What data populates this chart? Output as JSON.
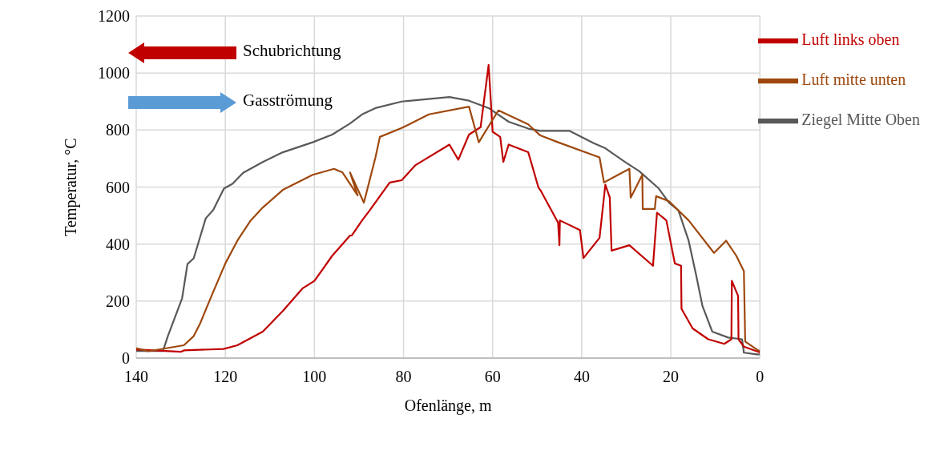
{
  "chart_data": {
    "type": "line",
    "xlabel": "Ofenlänge, m",
    "ylabel": "Temperatur, °C",
    "annotations": [
      "Schubrichtung",
      "Gasströmung"
    ],
    "xlim": [
      140,
      0
    ],
    "xticks": [
      140,
      120,
      100,
      80,
      60,
      40,
      20,
      0
    ],
    "ylim": [
      0,
      1200
    ],
    "yticks": [
      0,
      200,
      400,
      600,
      800,
      1000,
      1200
    ],
    "grid": true,
    "legend": "top right",
    "line_style": "solid",
    "marker": "none",
    "series": [
      {
        "name": "Ziegel Mitte Oben",
        "color": "#595959",
        "x": [
          140,
          134,
          132.9,
          129.7,
          128.5,
          127.1,
          124.4,
          122.7,
          120.3,
          118.4,
          116,
          111.6,
          107.1,
          100.4,
          96,
          92,
          89.3,
          86.3,
          80.4,
          69.7,
          65.3,
          60.9,
          56.4,
          52,
          49.3,
          45.3,
          42.7,
          37.3,
          34.7,
          30.3,
          27.1,
          22.7,
          20.4,
          18.3,
          16,
          14.3,
          12.9,
          10.7,
          7.1,
          4,
          3.6,
          0.7,
          0
        ],
        "values": [
          25,
          25,
          77,
          210,
          330,
          350,
          490,
          520,
          595,
          611,
          650,
          688,
          722,
          757,
          784,
          823,
          855,
          877,
          900,
          916,
          903,
          877,
          829,
          805,
          797,
          797,
          797,
          754,
          736,
          688,
          656,
          595,
          545,
          518,
          412,
          290,
          183,
          93,
          72,
          66,
          19,
          13,
          13
        ]
      },
      {
        "name": "Luft links oben",
        "color": "#c00000",
        "x": [
          140,
          137,
          130,
          129.3,
          120.4,
          117.3,
          111.6,
          107.1,
          102.7,
          100,
          96,
          92,
          91.6,
          89.3,
          87.6,
          83.1,
          80.4,
          77.3,
          69.7,
          67.7,
          65.3,
          62.7,
          60.9,
          60.5,
          60,
          58.3,
          57.6,
          56.4,
          52,
          49.7,
          49.3,
          45.3,
          45,
          44.9,
          40.4,
          39.6,
          36,
          34.7,
          33.7,
          33.3,
          29.3,
          24,
          23.1,
          21,
          19.1,
          17.7,
          17.6,
          15.1,
          11.6,
          8,
          6.4,
          6.3,
          4.9,
          4.8,
          3.6,
          0.7,
          0
        ],
        "values": [
          30,
          28,
          22,
          27,
          32,
          45,
          93,
          165,
          244,
          271,
          359,
          430,
          430,
          483,
          518,
          616,
          624,
          677,
          749,
          696,
          784,
          810,
          1028,
          927,
          794,
          776,
          688,
          749,
          722,
          598,
          590,
          475,
          396,
          483,
          449,
          351,
          422,
          608,
          563,
          377,
          396,
          324,
          510,
          483,
          332,
          324,
          173,
          104,
          66,
          50,
          66,
          271,
          218,
          66,
          40,
          24,
          20
        ]
      },
      {
        "name": "Luft mitte unten",
        "color": "#9e480e",
        "x": [
          140,
          137.3,
          129.3,
          127.1,
          125.7,
          123.1,
          120,
          117.3,
          114.3,
          111.6,
          107.1,
          100.4,
          95.6,
          93.7,
          90.3,
          92,
          88.9,
          86.3,
          85.3,
          80.4,
          74.3,
          65.3,
          63.1,
          58.7,
          52,
          49.3,
          45.3,
          36,
          35,
          29.3,
          29,
          26.4,
          26.3,
          23.6,
          23.3,
          20.4,
          16,
          10.3,
          7.6,
          5.3,
          3.6,
          3.3,
          0.4,
          0
        ],
        "values": [
          35,
          24,
          45,
          77,
          120,
          218,
          332,
          412,
          483,
          528,
          590,
          643,
          664,
          651,
          571,
          651,
          545,
          704,
          776,
          807,
          855,
          882,
          757,
          869,
          820,
          781,
          757,
          704,
          616,
          664,
          563,
          643,
          523,
          523,
          568,
          550,
          483,
          369,
          412,
          359,
          305,
          58,
          27,
          25
        ]
      }
    ]
  }
}
